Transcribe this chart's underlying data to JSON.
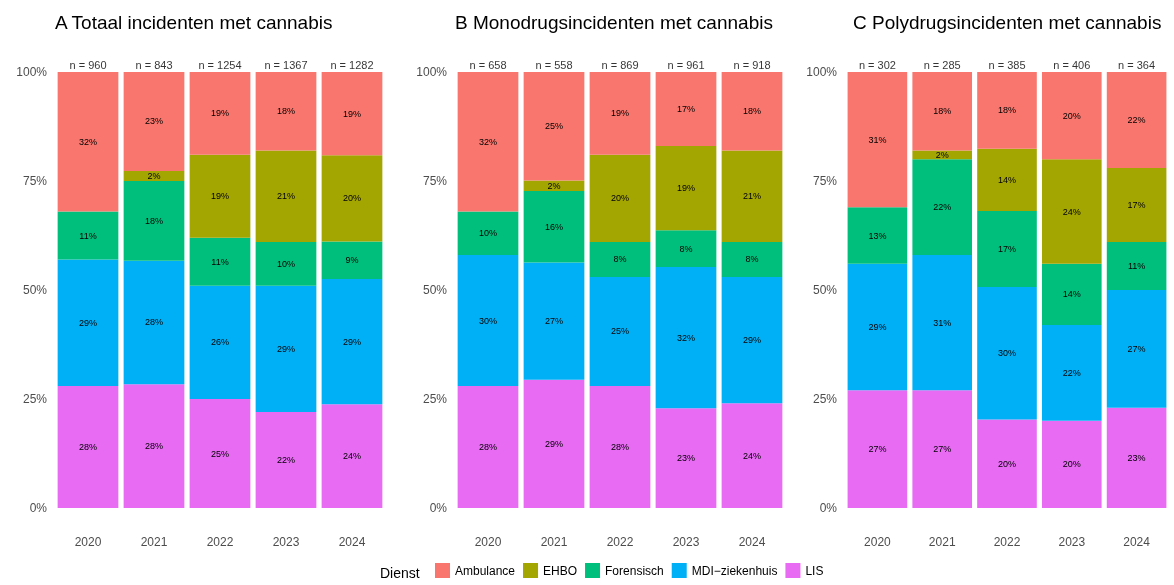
{
  "chart_data": [
    {
      "type": "bar",
      "title": "A Totaal incidenten met cannabis",
      "categories": [
        "2020",
        "2021",
        "2022",
        "2023",
        "2024"
      ],
      "stacked": true,
      "ylim": [
        0,
        100
      ],
      "yticks": [
        {
          "value": 0,
          "label": "0%"
        },
        {
          "value": 25,
          "label": "25%"
        },
        {
          "value": 50,
          "label": "50%"
        },
        {
          "value": 75,
          "label": "75%"
        },
        {
          "value": 100,
          "label": "100%"
        }
      ],
      "legend": false,
      "annotations": [
        {
          "text": "n = 960",
          "x": "2020",
          "y": 100
        },
        {
          "text": "n = 843",
          "x": "2021",
          "y": 100
        },
        {
          "text": "n = 1254",
          "x": "2022",
          "y": 100
        },
        {
          "text": "n = 1367",
          "x": "2023",
          "y": 100
        },
        {
          "text": "n = 1282",
          "x": "2024",
          "y": 100
        }
      ],
      "series": [
        {
          "color": "#e76bf3",
          "values": [
            28,
            28.4,
            25,
            22,
            23.8
          ],
          "value_labels": [
            "28%",
            "28%",
            "25%",
            "22%",
            "24%"
          ]
        },
        {
          "color": "#00b0f6",
          "values": [
            29,
            28.3,
            26,
            29,
            28.7
          ],
          "value_labels": [
            "29%",
            "28%",
            "26%",
            "29%",
            "29%"
          ]
        },
        {
          "color": "#00bf7d",
          "values": [
            11,
            18.3,
            11,
            10,
            8.6
          ],
          "value_labels": [
            "11%",
            "18%",
            "11%",
            "10%",
            "9%"
          ]
        },
        {
          "color": "#a3a500",
          "values": [
            null,
            2.3,
            19,
            21,
            19.8
          ],
          "value_labels": [
            null,
            "2%",
            "19%",
            "21%",
            "20%"
          ]
        },
        {
          "color": "#f8766d",
          "values": [
            32,
            22.7,
            19,
            18,
            19.1
          ],
          "value_labels": [
            "32%",
            "23%",
            "19%",
            "18%",
            "19%"
          ]
        }
      ]
    },
    {
      "type": "bar",
      "title": "B Monodrugsincidenten met cannabis",
      "categories": [
        "2020",
        "2021",
        "2022",
        "2023",
        "2024"
      ],
      "stacked": true,
      "ylim": [
        0,
        100
      ],
      "yticks": [
        {
          "value": 0,
          "label": "0%"
        },
        {
          "value": 25,
          "label": "25%"
        },
        {
          "value": 50,
          "label": "50%"
        },
        {
          "value": 75,
          "label": "75%"
        },
        {
          "value": 100,
          "label": "100%"
        }
      ],
      "legend": "bottom",
      "legend_title": "Dienst",
      "annotations": [
        {
          "text": "n = 658",
          "x": "2020",
          "y": 100
        },
        {
          "text": "n = 558",
          "x": "2021",
          "y": 100
        },
        {
          "text": "n = 869",
          "x": "2022",
          "y": 100
        },
        {
          "text": "n = 961",
          "x": "2023",
          "y": 100
        },
        {
          "text": "n = 918",
          "x": "2024",
          "y": 100
        }
      ],
      "series": [
        {
          "name": "LIS",
          "color": "#e76bf3",
          "values": [
            28,
            29.4,
            28,
            22.9,
            24
          ],
          "value_labels": [
            "28%",
            "29%",
            "28%",
            "23%",
            "24%"
          ]
        },
        {
          "name": "MDI−ziekenhuis",
          "color": "#00b0f6",
          "values": [
            30,
            26.9,
            25,
            32.4,
            29
          ],
          "value_labels": [
            "30%",
            "27%",
            "25%",
            "32%",
            "29%"
          ]
        },
        {
          "name": "Forensisch",
          "color": "#00bf7d",
          "values": [
            10,
            16.4,
            8,
            8.4,
            8
          ],
          "value_labels": [
            "10%",
            "16%",
            "8%",
            "8%",
            "8%"
          ]
        },
        {
          "name": "EHBO",
          "color": "#a3a500",
          "values": [
            null,
            2.4,
            20,
            19.3,
            21
          ],
          "value_labels": [
            null,
            "2%",
            "20%",
            "19%",
            "21%"
          ]
        },
        {
          "name": "Ambulance",
          "color": "#f8766d",
          "values": [
            32,
            24.9,
            19,
            17,
            18
          ],
          "value_labels": [
            "32%",
            "25%",
            "19%",
            "17%",
            "18%"
          ]
        }
      ]
    },
    {
      "type": "bar",
      "title": "C Polydrugsincidenten met cannabis",
      "categories": [
        "2020",
        "2021",
        "2022",
        "2023",
        "2024"
      ],
      "stacked": true,
      "ylim": [
        0,
        100
      ],
      "yticks": [
        {
          "value": 0,
          "label": "0%"
        },
        {
          "value": 25,
          "label": "25%"
        },
        {
          "value": 50,
          "label": "50%"
        },
        {
          "value": 75,
          "label": "75%"
        },
        {
          "value": 100,
          "label": "100%"
        }
      ],
      "legend": false,
      "annotations": [
        {
          "text": "n = 302",
          "x": "2020",
          "y": 100
        },
        {
          "text": "n = 285",
          "x": "2021",
          "y": 100
        },
        {
          "text": "n = 385",
          "x": "2022",
          "y": 100
        },
        {
          "text": "n = 406",
          "x": "2023",
          "y": 100
        },
        {
          "text": "n = 364",
          "x": "2024",
          "y": 100
        }
      ],
      "series": [
        {
          "color": "#e76bf3",
          "values": [
            27,
            27,
            20.3,
            20,
            23
          ],
          "value_labels": [
            "27%",
            "27%",
            "20%",
            "20%",
            "23%"
          ]
        },
        {
          "color": "#00b0f6",
          "values": [
            29,
            31,
            30.4,
            22,
            27
          ],
          "value_labels": [
            "29%",
            "31%",
            "30%",
            "22%",
            "27%"
          ]
        },
        {
          "color": "#00bf7d",
          "values": [
            13,
            22,
            17.4,
            14,
            11
          ],
          "value_labels": [
            "13%",
            "22%",
            "17%",
            "14%",
            "11%"
          ]
        },
        {
          "color": "#a3a500",
          "values": [
            null,
            2,
            14.3,
            24,
            17
          ],
          "value_labels": [
            null,
            "2%",
            "14%",
            "24%",
            "17%"
          ]
        },
        {
          "color": "#f8766d",
          "values": [
            31,
            18,
            17.6,
            20,
            22
          ],
          "value_labels": [
            "31%",
            "18%",
            "18%",
            "20%",
            "22%"
          ]
        }
      ]
    }
  ]
}
